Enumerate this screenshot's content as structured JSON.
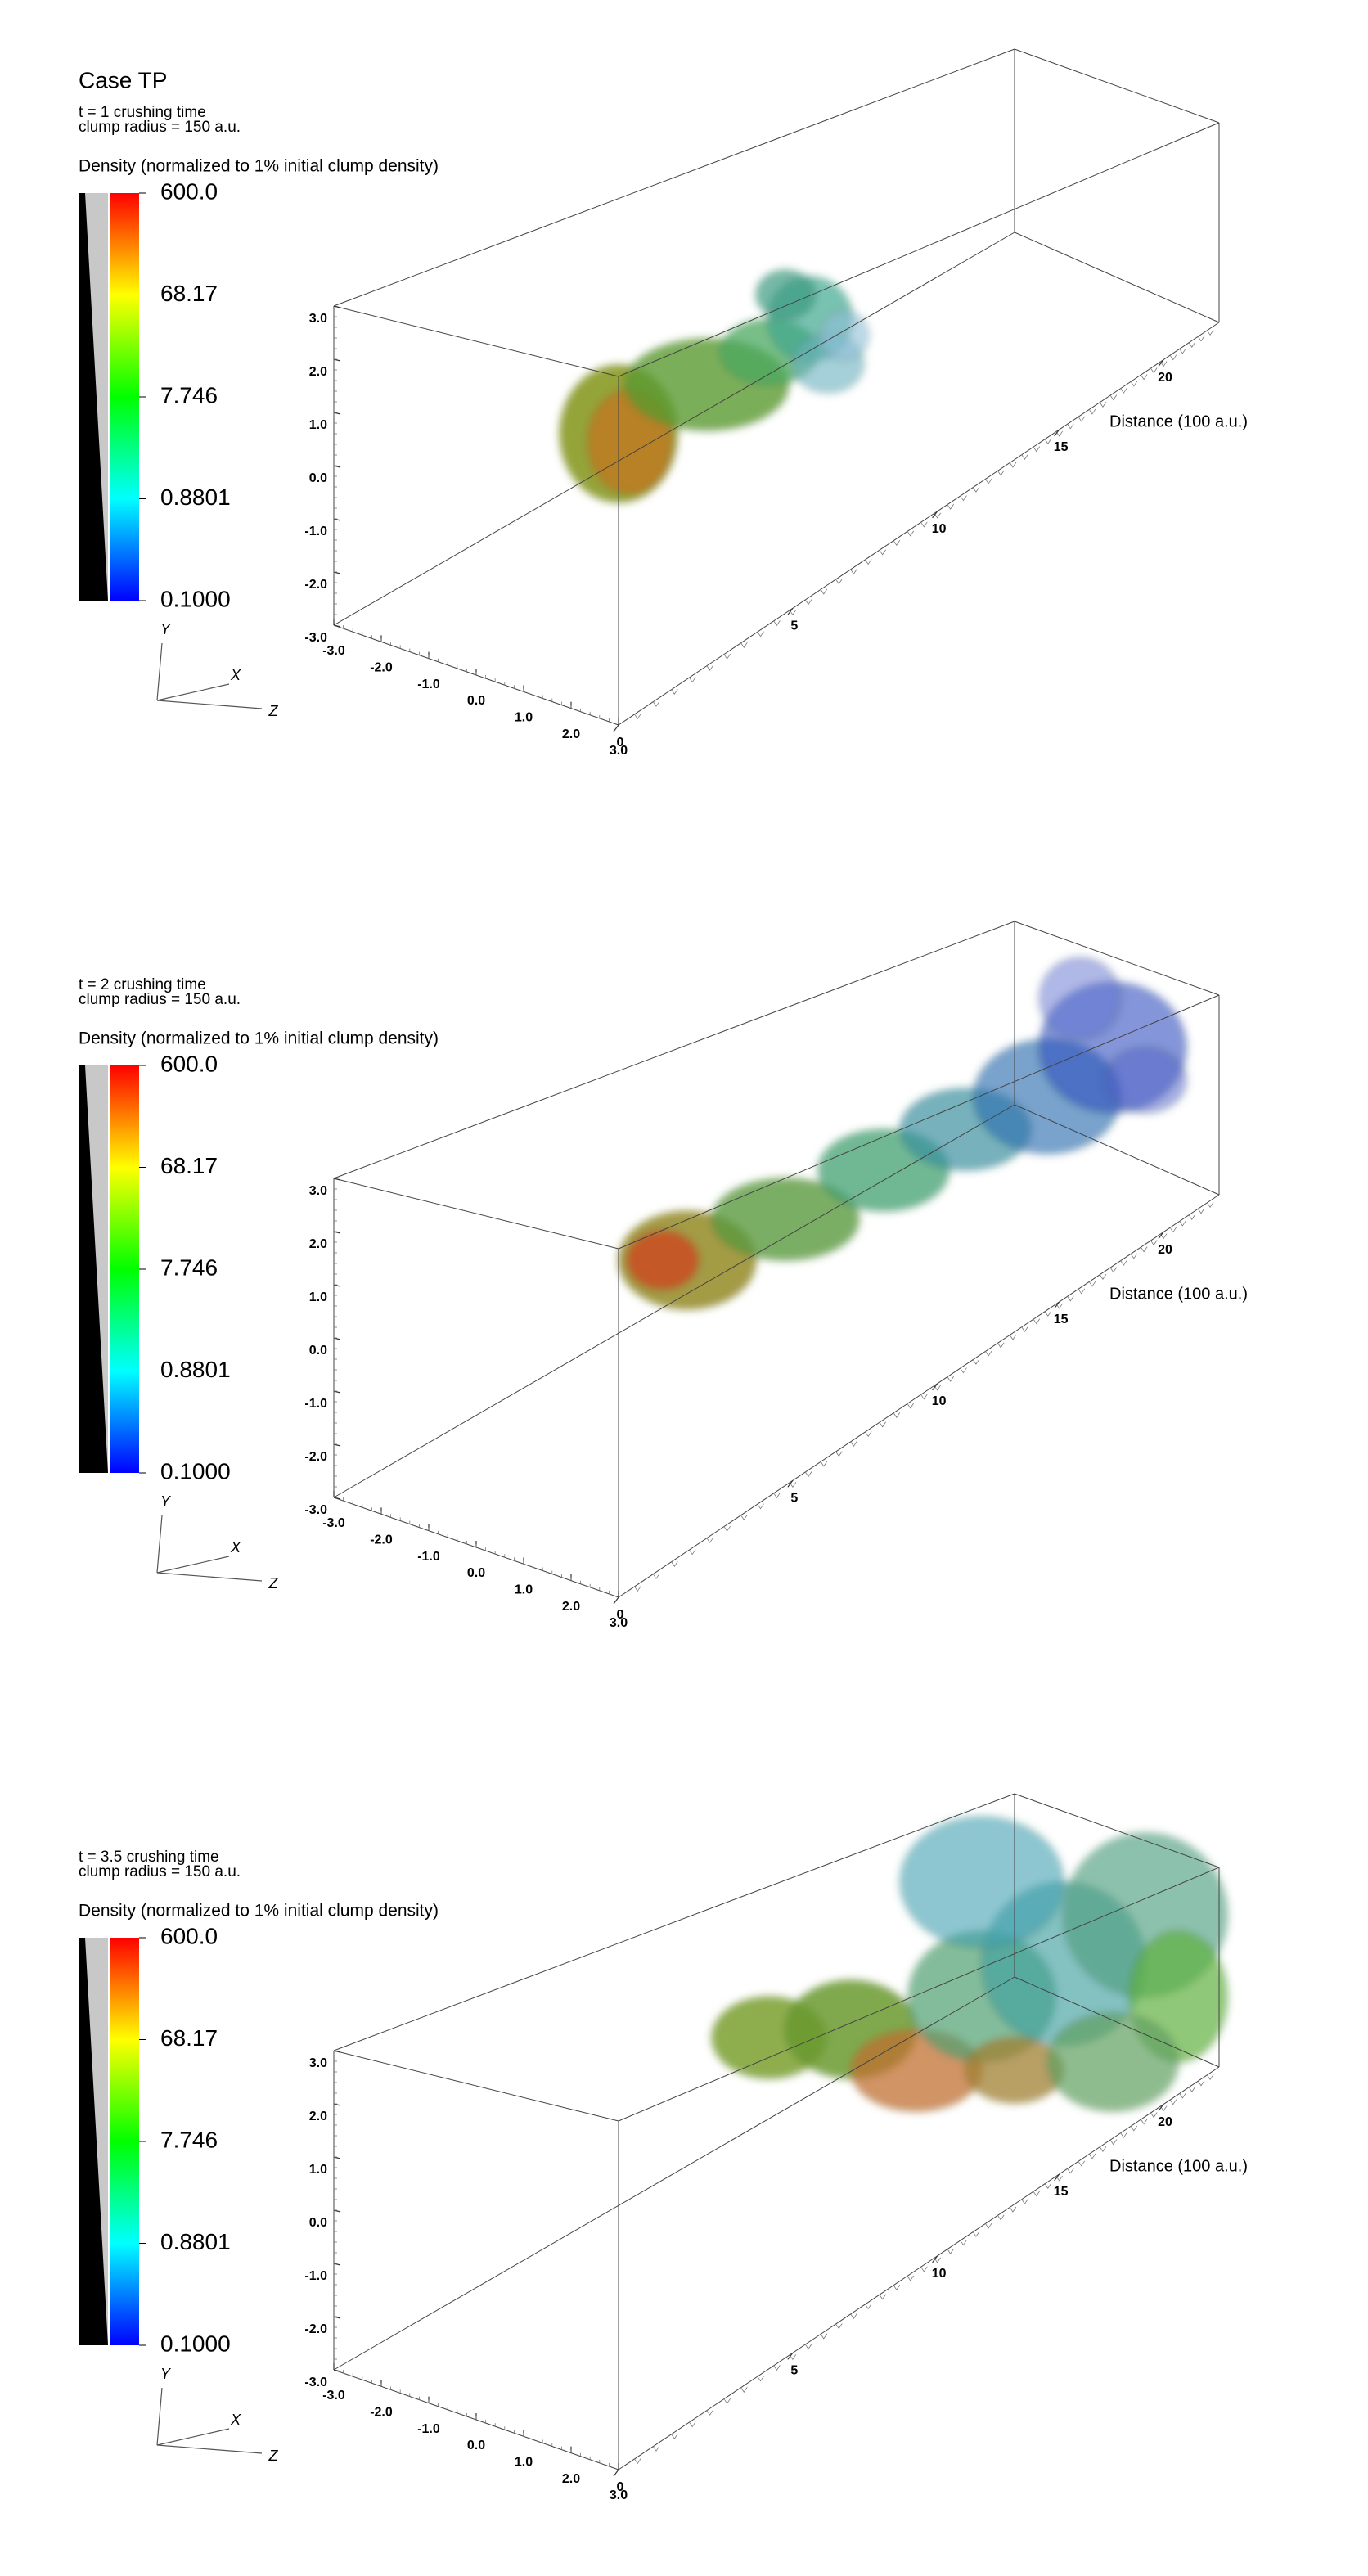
{
  "chart_data": [
    {
      "type": "volume",
      "title": "Case TP",
      "time_label": "t = 1 crushing time",
      "radius_label": "clump radius = 150 a.u.",
      "colorbar_title": "Density (normalized to 1% initial clump density)",
      "colormap": [
        "#ff0000",
        "#ffff00",
        "#00ff00",
        "#00ffff",
        "#0000ff"
      ],
      "clim": [
        0.1,
        600
      ],
      "log": true,
      "cticks": [
        {
          "value": 600,
          "label": "600.0"
        },
        {
          "value": 68.17,
          "label": "68.17"
        },
        {
          "value": 7.746,
          "label": "7.746"
        },
        {
          "value": 0.8801,
          "label": "0.8801"
        },
        {
          "value": 0.1,
          "label": "0.1000"
        }
      ],
      "xlabel": "Distance (100 a.u.)",
      "xlim": [
        0,
        23
      ],
      "xticks": [
        0,
        5,
        10,
        15,
        20
      ],
      "ylim": [
        -3,
        3
      ],
      "yticks": [
        {
          "value": 3,
          "label": "3.0"
        },
        {
          "value": 2,
          "label": "2.0"
        },
        {
          "value": 1,
          "label": "1.0"
        },
        {
          "value": 0,
          "label": "0.0"
        },
        {
          "value": -1,
          "label": "-1.0"
        },
        {
          "value": -2,
          "label": "-2.0"
        },
        {
          "value": -3,
          "label": "-3.0"
        }
      ],
      "zlim": [
        -3,
        3
      ],
      "zticks": [
        {
          "value": -3,
          "label": "-3.0"
        },
        {
          "value": -2,
          "label": "-2.0"
        },
        {
          "value": -1,
          "label": "-1.0"
        },
        {
          "value": 0,
          "label": "0.0"
        },
        {
          "value": 1,
          "label": "1.0"
        },
        {
          "value": 2,
          "label": "2.0"
        },
        {
          "value": 3,
          "label": "3.0"
        }
      ],
      "triad": {
        "y": "Y",
        "x": "X",
        "z": "Z"
      }
    },
    {
      "type": "volume",
      "time_label": "t = 2 crushing time",
      "radius_label": "clump radius = 150 a.u.",
      "colorbar_title": "Density (normalized to 1% initial clump density)",
      "colormap": [
        "#ff0000",
        "#ffff00",
        "#00ff00",
        "#00ffff",
        "#0000ff"
      ],
      "clim": [
        0.1,
        600
      ],
      "log": true,
      "cticks": [
        {
          "value": 600,
          "label": "600.0"
        },
        {
          "value": 68.17,
          "label": "68.17"
        },
        {
          "value": 7.746,
          "label": "7.746"
        },
        {
          "value": 0.8801,
          "label": "0.8801"
        },
        {
          "value": 0.1,
          "label": "0.1000"
        }
      ],
      "xlabel": "Distance (100 a.u.)",
      "xlim": [
        0,
        23
      ],
      "xticks": [
        0,
        5,
        10,
        15,
        20
      ],
      "ylim": [
        -3,
        3
      ],
      "yticks": [
        {
          "value": 3,
          "label": "3.0"
        },
        {
          "value": 2,
          "label": "2.0"
        },
        {
          "value": 1,
          "label": "1.0"
        },
        {
          "value": 0,
          "label": "0.0"
        },
        {
          "value": -1,
          "label": "-1.0"
        },
        {
          "value": -2,
          "label": "-2.0"
        },
        {
          "value": -3,
          "label": "-3.0"
        }
      ],
      "zlim": [
        -3,
        3
      ],
      "zticks": [
        {
          "value": -3,
          "label": "-3.0"
        },
        {
          "value": -2,
          "label": "-2.0"
        },
        {
          "value": -1,
          "label": "-1.0"
        },
        {
          "value": 0,
          "label": "0.0"
        },
        {
          "value": 1,
          "label": "1.0"
        },
        {
          "value": 2,
          "label": "2.0"
        },
        {
          "value": 3,
          "label": "3.0"
        }
      ],
      "triad": {
        "y": "Y",
        "x": "X",
        "z": "Z"
      }
    },
    {
      "type": "volume",
      "time_label": "t = 3.5 crushing time",
      "radius_label": "clump radius = 150 a.u.",
      "colorbar_title": "Density (normalized to 1% initial clump density)",
      "colormap": [
        "#ff0000",
        "#ffff00",
        "#00ff00",
        "#00ffff",
        "#0000ff"
      ],
      "clim": [
        0.1,
        600
      ],
      "log": true,
      "cticks": [
        {
          "value": 600,
          "label": "600.0"
        },
        {
          "value": 68.17,
          "label": "68.17"
        },
        {
          "value": 7.746,
          "label": "7.746"
        },
        {
          "value": 0.8801,
          "label": "0.8801"
        },
        {
          "value": 0.1,
          "label": "0.1000"
        }
      ],
      "xlabel": "Distance (100 a.u.)",
      "xlim": [
        0,
        23
      ],
      "xticks": [
        0,
        5,
        10,
        15,
        20
      ],
      "ylim": [
        -3,
        3
      ],
      "yticks": [
        {
          "value": 3,
          "label": "3.0"
        },
        {
          "value": 2,
          "label": "2.0"
        },
        {
          "value": 1,
          "label": "1.0"
        },
        {
          "value": 0,
          "label": "0.0"
        },
        {
          "value": -1,
          "label": "-1.0"
        },
        {
          "value": -2,
          "label": "-2.0"
        },
        {
          "value": -3,
          "label": "-3.0"
        }
      ],
      "zlim": [
        -3,
        3
      ],
      "zticks": [
        {
          "value": -3,
          "label": "-3.0"
        },
        {
          "value": -2,
          "label": "-2.0"
        },
        {
          "value": -1,
          "label": "-1.0"
        },
        {
          "value": 0,
          "label": "0.0"
        },
        {
          "value": 1,
          "label": "1.0"
        },
        {
          "value": 2,
          "label": "2.0"
        },
        {
          "value": 3,
          "label": "3.0"
        }
      ],
      "triad": {
        "y": "Y",
        "x": "X",
        "z": "Z"
      }
    }
  ]
}
